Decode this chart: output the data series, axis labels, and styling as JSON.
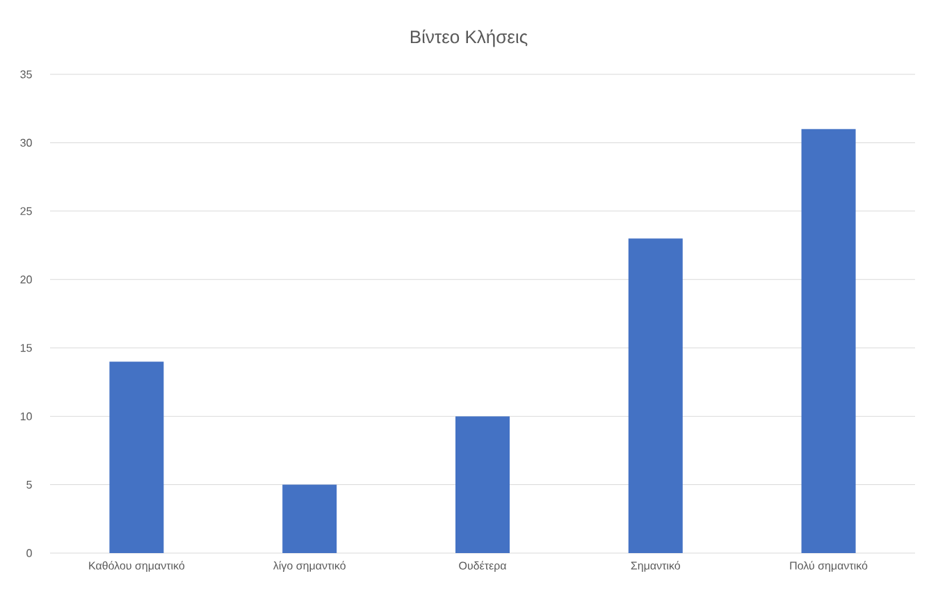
{
  "chart_data": {
    "type": "bar",
    "title": "Βίντεο Κλήσεις",
    "categories": [
      "Καθόλου σημαντικό",
      "λίγο σημαντικό",
      "Ουδέτερα",
      "Σημαντικό",
      "Πολύ σημαντικό"
    ],
    "values": [
      14,
      5,
      10,
      23,
      31
    ],
    "color": "#4472c4",
    "ylim": [
      0,
      35
    ],
    "yticks": [
      0,
      5,
      10,
      15,
      20,
      25,
      30,
      35
    ],
    "grid": "y"
  }
}
